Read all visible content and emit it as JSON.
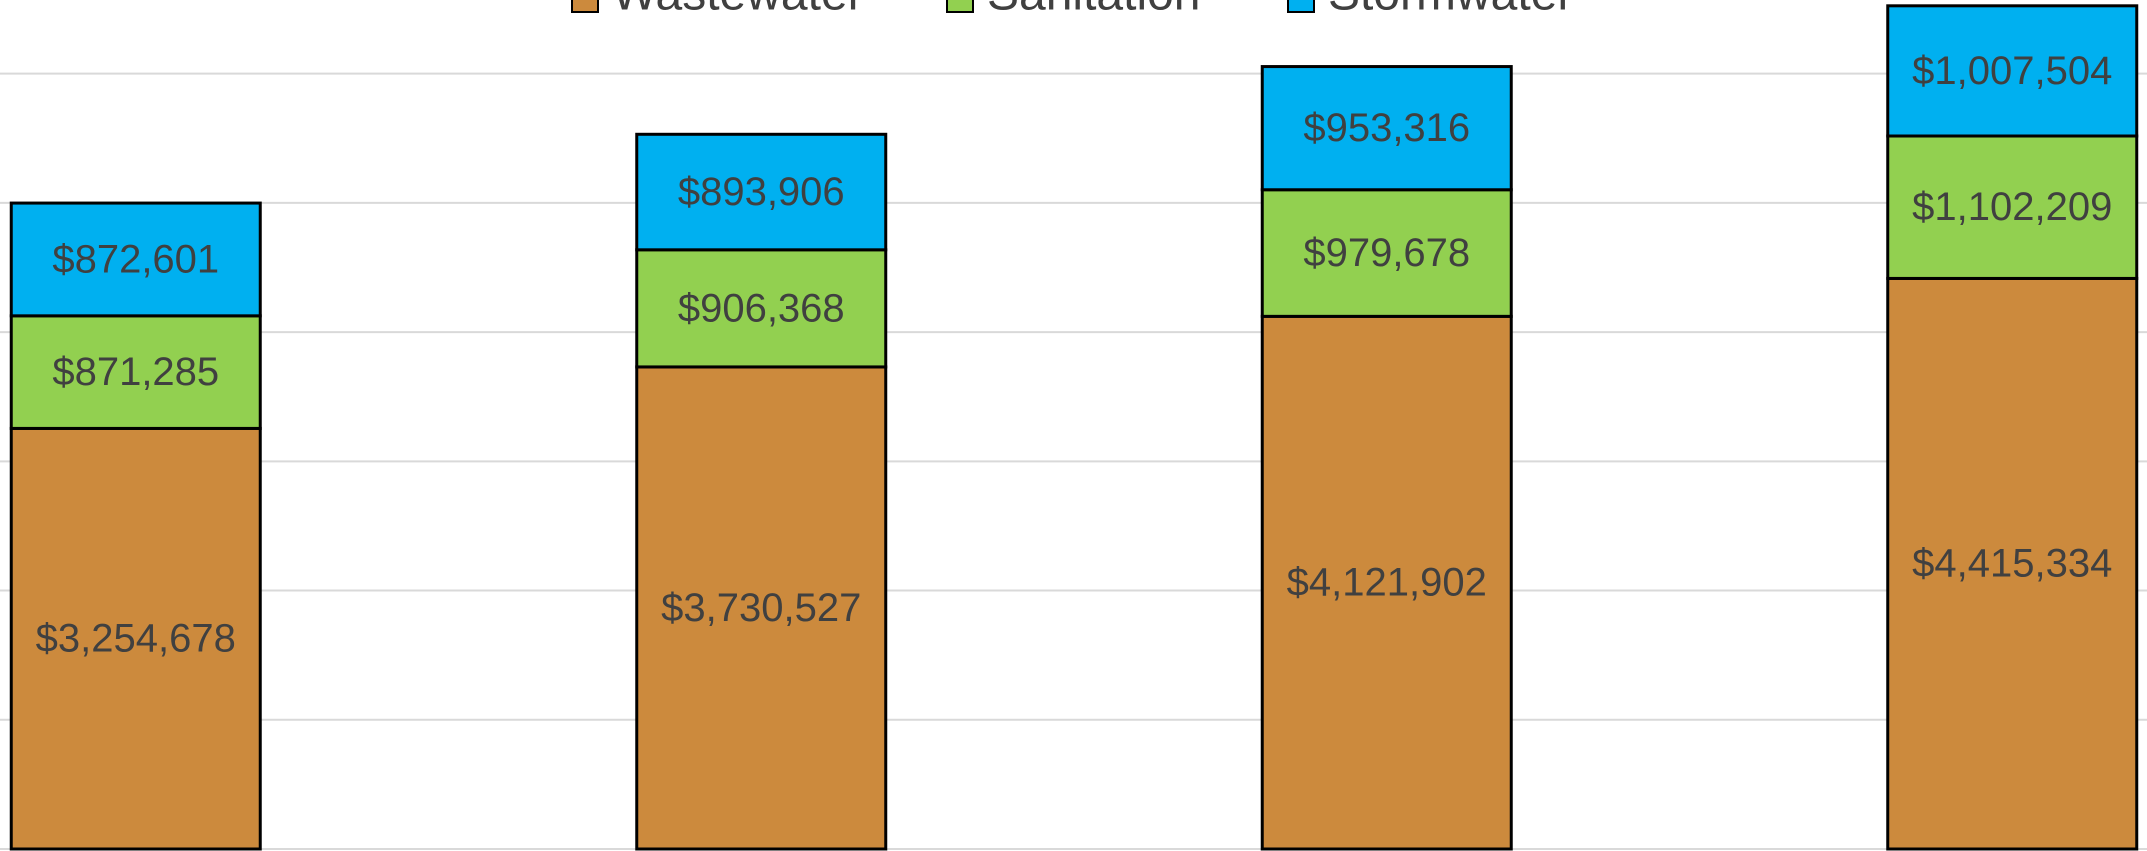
{
  "chart_data": {
    "type": "stacked_bar",
    "categories": [
      null,
      null,
      null,
      null
    ],
    "series": [
      {
        "name": "Wastewater",
        "color": "#cc8a3d",
        "values": [
          3254678,
          3730527,
          4121902,
          4415334
        ],
        "value_labels": [
          "$3,254,678",
          "$3,730,527",
          "$4,121,902",
          "$4,415,334"
        ]
      },
      {
        "name": "Sanitation",
        "color": "#92d050",
        "values": [
          871285,
          906368,
          979678,
          1102209
        ],
        "value_labels": [
          "$871,285",
          "$906,368",
          "$979,678",
          "$1,102,209"
        ]
      },
      {
        "name": "Stormwater",
        "color": "#00b0f0",
        "values": [
          872601,
          893906,
          953316,
          1007504
        ],
        "value_labels": [
          "$872,601",
          "$893,906",
          "$953,316",
          "$1,007,504"
        ]
      }
    ],
    "ylim": [
      0,
      6570000
    ],
    "yticks": [
      0,
      1000000,
      2000000,
      3000000,
      4000000,
      5000000,
      6000000
    ],
    "grid": true
  }
}
